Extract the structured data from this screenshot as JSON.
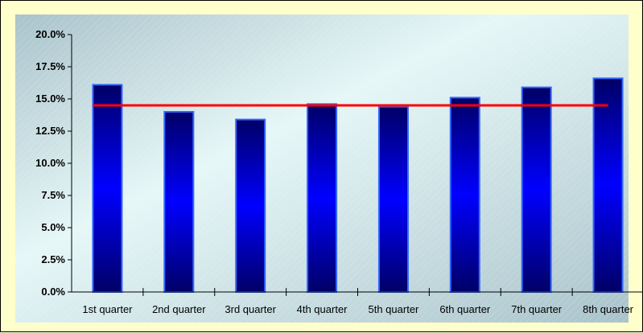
{
  "chart_data": {
    "type": "bar",
    "title": "",
    "xlabel": "",
    "ylabel": "",
    "categories": [
      "1st quarter",
      "2nd quarter",
      "3rd quarter",
      "4th quarter",
      "5th quarter",
      "6th quarter",
      "7th quarter",
      "8th quarter"
    ],
    "values": [
      16.1,
      14.0,
      13.4,
      14.6,
      14.4,
      15.1,
      15.9,
      16.6
    ],
    "reference_line": {
      "value": 14.5,
      "color": "#ff0000"
    },
    "y_axis": {
      "min": 0,
      "max": 20,
      "step": 2.5,
      "ticks": [
        "0.0%",
        "2.5%",
        "5.0%",
        "7.5%",
        "10.0%",
        "12.5%",
        "15.0%",
        "17.5%",
        "20.0%"
      ]
    },
    "grid": false,
    "legend": "none",
    "colors": {
      "bar_dark": "#000066",
      "bar_bright": "#0000ff",
      "bar_border": "#3366ff",
      "plot_bg_light": "#e6f7f7",
      "plot_bg_dark": "#a9c3cb",
      "frame_bg": "#ffffcc"
    }
  }
}
